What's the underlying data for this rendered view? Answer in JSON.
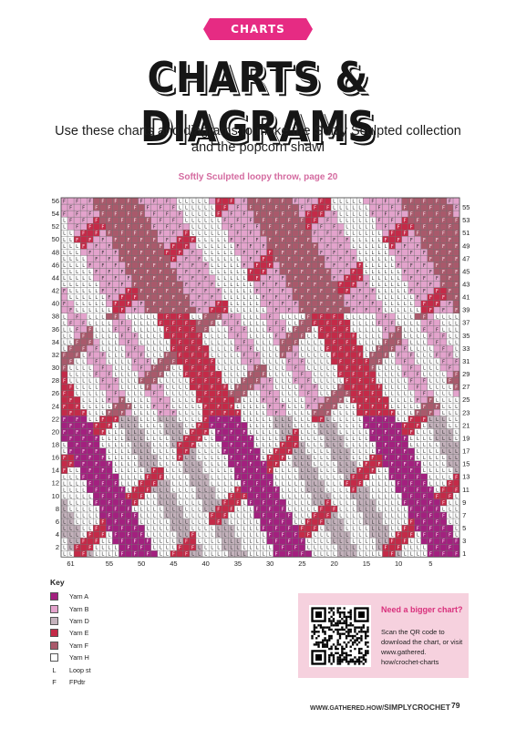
{
  "header": {
    "banner_label": "CHARTS",
    "title": "CHARTS & DIAGRAMS",
    "subtitle": "Use these charts and diagrams to make the Softly Sculpted collection and the popcorn shawl"
  },
  "chart_caption": "Softly Sculpted loopy throw, page 20",
  "chart_data": {
    "type": "heatmap",
    "title": "Softly Sculpted loopy throw, page 20",
    "columns": 62,
    "rows": 56,
    "row_labels_left": [
      2,
      4,
      6,
      8,
      10,
      12,
      14,
      16,
      18,
      20,
      22,
      24,
      26,
      28,
      30,
      32,
      34,
      36,
      38,
      40,
      42,
      44,
      46,
      48,
      50,
      52,
      54,
      56
    ],
    "row_labels_right": [
      1,
      3,
      5,
      7,
      9,
      11,
      13,
      15,
      17,
      19,
      21,
      23,
      25,
      27,
      29,
      31,
      33,
      35,
      37,
      39,
      41,
      43,
      45,
      47,
      49,
      51,
      53,
      55
    ],
    "column_labels": [
      "61",
      "55",
      "50",
      "45",
      "40",
      "35",
      "30",
      "25",
      "20",
      "15",
      "10",
      "5"
    ],
    "colors": {
      "A": "#a3207f",
      "B": "#e3a3cc",
      "D": "#c4b2bc",
      "E": "#c42a48",
      "F": "#a9596b",
      "H": "#ffffff",
      "grid": "#6d6d6d"
    },
    "symbols": {
      "loop": "L",
      "fpdtr": "F"
    }
  },
  "key": {
    "heading": "Key",
    "items": [
      {
        "color": "#a3207f",
        "label": "Yarn A"
      },
      {
        "color": "#e3a3cc",
        "label": "Yarn B"
      },
      {
        "color": "#c4b2bc",
        "label": "Yarn D"
      },
      {
        "color": "#c42a48",
        "label": "Yarn E"
      },
      {
        "color": "#a9596b",
        "label": "Yarn F"
      },
      {
        "color": "#ffffff",
        "label": "Yarn H"
      }
    ],
    "symbols": [
      {
        "symbol": "L",
        "label": "Loop st"
      },
      {
        "symbol": "F",
        "label": "FPdtr"
      }
    ]
  },
  "promo": {
    "heading": "Need a bigger chart?",
    "body": "Scan the QR code to download the chart, or visit www.gathered. how/crochet-charts"
  },
  "footer": {
    "url_prefix": "WWW.GATHERED.HOW/",
    "url_suffix": "SIMPLYCROCHET",
    "page": "79"
  }
}
